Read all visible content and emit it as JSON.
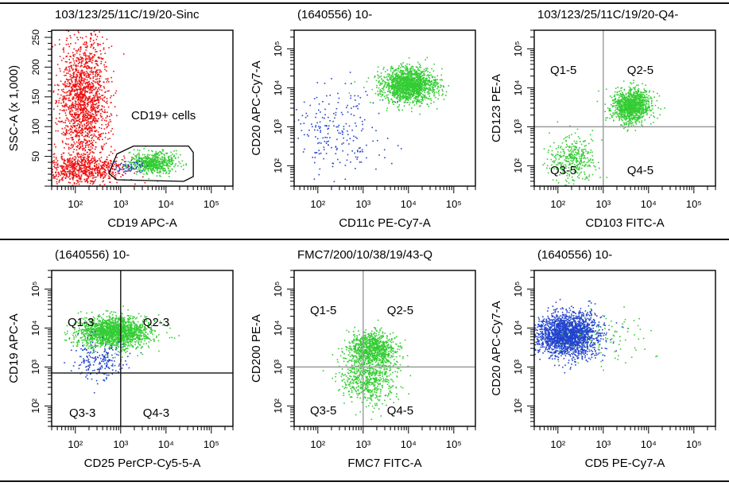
{
  "colors": {
    "red": "#ee1111",
    "green": "#33cc33",
    "blue": "#2244cc",
    "frame": "#000000",
    "quad": "#9a9a9a"
  },
  "chart_data": [
    {
      "type": "scatter",
      "title": "103/123/25/11C/19/20-Sinc",
      "xlabel": "CD19 APC-A",
      "ylabel": "SSC-A (x 1,000)",
      "xscale": "log",
      "xlim": [
        30,
        300000
      ],
      "xticks": [
        "10²",
        "10³",
        "10⁴",
        "10⁵"
      ],
      "yscale": "linear",
      "ylim": [
        0,
        262
      ],
      "yticks": [
        "50",
        "100",
        "150",
        "200",
        "250"
      ],
      "gate": {
        "label": "CD19+ cells"
      },
      "series": [
        {
          "color": "red",
          "clusters": [
            {
              "cx": 150,
              "cy": 145,
              "sx": 0.28,
              "sy": 55,
              "n": 1600
            },
            {
              "cx": 150,
              "cy": 30,
              "sx": 0.45,
              "sy": 12,
              "n": 700
            }
          ]
        },
        {
          "color": "green",
          "clusters": [
            {
              "cx": 5000,
              "cy": 40,
              "sx": 0.25,
              "sy": 9,
              "n": 600
            }
          ]
        },
        {
          "color": "blue",
          "clusters": [
            {
              "cx": 1500,
              "cy": 32,
              "sx": 0.2,
              "sy": 6,
              "n": 60
            }
          ]
        }
      ]
    },
    {
      "type": "scatter",
      "title": "(1640556) 10-",
      "xlabel": "CD11c PE-Cy7-A",
      "ylabel": "CD20 APC-Cy7-A",
      "xscale": "log",
      "xlim": [
        30,
        300000
      ],
      "xticks": [
        "10²",
        "10³",
        "10⁴",
        "10⁵"
      ],
      "yscale": "log",
      "ylim": [
        30,
        300000
      ],
      "yticks": [
        "10²",
        "10³",
        "10⁴",
        "10⁵"
      ],
      "series": [
        {
          "color": "green",
          "clusters": [
            {
              "cx": 10000,
              "cy": 12000,
              "sx": 0.3,
              "sy": 0.22,
              "n": 1600
            }
          ]
        },
        {
          "color": "blue",
          "clusters": [
            {
              "cx": 300,
              "cy": 800,
              "sx": 0.55,
              "sy": 0.6,
              "n": 220
            }
          ]
        }
      ]
    },
    {
      "type": "scatter",
      "title": "103/123/25/11C/19/20-Q4-",
      "xlabel": "CD103 FITC-A",
      "ylabel": "CD123 PE-A",
      "xscale": "log",
      "xlim": [
        30,
        300000
      ],
      "xticks": [
        "10²",
        "10³",
        "10⁴",
        "10⁵"
      ],
      "yscale": "log",
      "ylim": [
        30,
        300000
      ],
      "yticks": [
        "10²",
        "10³",
        "10⁴",
        "10⁵"
      ],
      "quadrants": {
        "x": 1000,
        "y": 1000,
        "labels": [
          "Q1-5",
          "Q2-5",
          "Q3-5",
          "Q4-5"
        ]
      },
      "series": [
        {
          "color": "green",
          "clusters": [
            {
              "cx": 4000,
              "cy": 3500,
              "sx": 0.22,
              "sy": 0.22,
              "n": 1100
            },
            {
              "cx": 200,
              "cy": 150,
              "sx": 0.28,
              "sy": 0.3,
              "n": 350
            }
          ]
        }
      ]
    },
    {
      "type": "scatter",
      "title": "(1640556) 10-",
      "xlabel": "CD25 PerCP-Cy5-5-A",
      "ylabel": "CD19 APC-A",
      "xscale": "log",
      "xlim": [
        30,
        300000
      ],
      "xticks": [
        "10²",
        "10³",
        "10⁴",
        "10⁵"
      ],
      "yscale": "log",
      "ylim": [
        30,
        300000
      ],
      "yticks": [
        "10²",
        "10³",
        "10⁴",
        "10⁵"
      ],
      "quadrants": {
        "x": 1000,
        "y": 700,
        "labels": [
          "Q1-3",
          "Q2-3",
          "Q3-3",
          "Q4-3"
        ]
      },
      "series": [
        {
          "color": "green",
          "clusters": [
            {
              "cx": 700,
              "cy": 8000,
              "sx": 0.4,
              "sy": 0.2,
              "n": 1800
            }
          ]
        },
        {
          "color": "blue",
          "clusters": [
            {
              "cx": 300,
              "cy": 1500,
              "sx": 0.3,
              "sy": 0.25,
              "n": 200
            }
          ]
        }
      ]
    },
    {
      "type": "scatter",
      "title": "FMC7/200/10/38/19/43-Q",
      "xlabel": "FMC7 FITC-A",
      "ylabel": "CD200 PE-A",
      "xscale": "log",
      "xlim": [
        30,
        300000
      ],
      "xticks": [
        "10²",
        "10³",
        "10⁴",
        "10⁵"
      ],
      "yscale": "log",
      "ylim": [
        30,
        300000
      ],
      "yticks": [
        "10²",
        "10³",
        "10⁴",
        "10⁵"
      ],
      "quadrants": {
        "x": 1000,
        "y": 1000,
        "labels": [
          "Q1-5",
          "Q2-5",
          "Q3-5",
          "Q4-5"
        ]
      },
      "series": [
        {
          "color": "green",
          "clusters": [
            {
              "cx": 1500,
              "cy": 3000,
              "sx": 0.28,
              "sy": 0.22,
              "n": 900
            },
            {
              "cx": 1300,
              "cy": 500,
              "sx": 0.3,
              "sy": 0.32,
              "n": 600
            }
          ]
        }
      ]
    },
    {
      "type": "scatter",
      "title": "(1640556) 10-",
      "xlabel": "CD5 PE-Cy7-A",
      "ylabel": "CD20 APC-Cy7-A",
      "xscale": "log",
      "xlim": [
        30,
        300000
      ],
      "xticks": [
        "10²",
        "10³",
        "10⁴",
        "10⁵"
      ],
      "yscale": "log",
      "ylim": [
        30,
        300000
      ],
      "yticks": [
        "10²",
        "10³",
        "10⁴",
        "10⁵"
      ],
      "series": [
        {
          "color": "blue",
          "clusters": [
            {
              "cx": 160,
              "cy": 7000,
              "sx": 0.35,
              "sy": 0.28,
              "n": 2000
            }
          ]
        },
        {
          "color": "green",
          "clusters": [
            {
              "cx": 1500,
              "cy": 5000,
              "sx": 0.45,
              "sy": 0.35,
              "n": 80
            }
          ]
        }
      ]
    }
  ]
}
